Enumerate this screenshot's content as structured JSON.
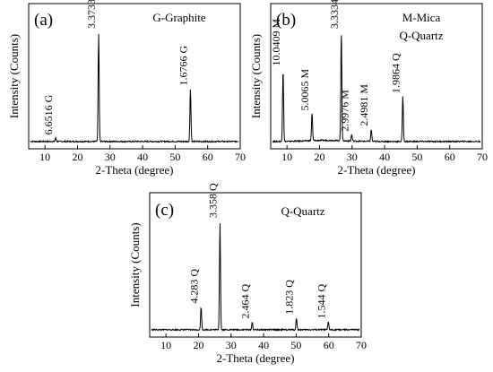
{
  "chart_data": [
    {
      "type": "line",
      "panel_label": "(a)",
      "legend": [
        "G-Graphite"
      ],
      "xlabel": "2-Theta (degree)",
      "ylabel": "Intensity (Counts)",
      "xlim": [
        5,
        70
      ],
      "xticks": [
        10,
        20,
        30,
        40,
        50,
        60,
        70
      ],
      "peaks": [
        {
          "x": 13.3,
          "h": 0.03,
          "label": "6.6516  G"
        },
        {
          "x": 26.5,
          "h": 1.0,
          "label": "3.3733  G"
        },
        {
          "x": 54.7,
          "h": 0.48,
          "label": "1.6766  G"
        }
      ]
    },
    {
      "type": "line",
      "panel_label": "(b)",
      "legend": [
        "M-Mica",
        "Q-Quartz"
      ],
      "xlabel": "2-Theta (degree)",
      "ylabel": "Intensity (Counts)",
      "xlim": [
        5,
        70
      ],
      "xticks": [
        10,
        20,
        30,
        40,
        50,
        60,
        70
      ],
      "peaks": [
        {
          "x": 8.8,
          "h": 0.66,
          "label": "10.0409  M"
        },
        {
          "x": 17.7,
          "h": 0.25,
          "label": "5.0065  M"
        },
        {
          "x": 26.7,
          "h": 1.0,
          "label": "3.3334  Q"
        },
        {
          "x": 29.9,
          "h": 0.06,
          "label": "2.9976  M"
        },
        {
          "x": 35.9,
          "h": 0.11,
          "label": "2.4981  M"
        },
        {
          "x": 45.6,
          "h": 0.41,
          "label": "1.9864  Q"
        }
      ]
    },
    {
      "type": "line",
      "panel_label": "(c)",
      "legend": [
        "Q-Quartz"
      ],
      "xlabel": "2-Theta (degree)",
      "ylabel": "Intensity (Counts)",
      "xlim": [
        5,
        70
      ],
      "xticks": [
        10,
        20,
        30,
        40,
        50,
        60,
        70
      ],
      "peaks": [
        {
          "x": 20.8,
          "h": 0.21,
          "label": "4.283  Q"
        },
        {
          "x": 26.6,
          "h": 1.0,
          "label": "3.358  Q"
        },
        {
          "x": 36.5,
          "h": 0.07,
          "label": "2.464  Q"
        },
        {
          "x": 50.1,
          "h": 0.11,
          "label": "1.823  Q"
        },
        {
          "x": 59.9,
          "h": 0.07,
          "label": "1.544  Q"
        }
      ]
    }
  ]
}
